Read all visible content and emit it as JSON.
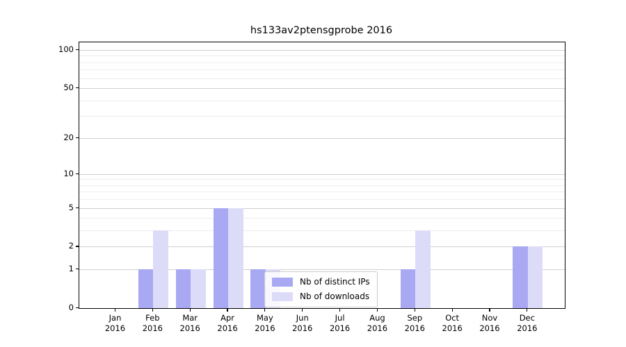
{
  "figure": {
    "background": "#ffffff",
    "spine_color": "#000000",
    "text_color": "#000000"
  },
  "chart_data": {
    "type": "bar",
    "title": "hs133av2ptensgprobe 2016",
    "xlabel": "",
    "ylabel": "",
    "x": {
      "months": [
        "Jan",
        "Feb",
        "Mar",
        "Apr",
        "May",
        "Jun",
        "Jul",
        "Aug",
        "Sep",
        "Oct",
        "Nov",
        "Dec"
      ],
      "year": "2016"
    },
    "series": [
      {
        "name": "Nb of distinct IPs",
        "color": "#a9a9f3",
        "values": [
          0,
          1,
          1,
          5,
          1,
          0,
          0,
          0,
          1,
          0,
          0,
          2
        ]
      },
      {
        "name": "Nb of downloads",
        "color": "#dcdcf8",
        "values": [
          0,
          3,
          1,
          5,
          1,
          0,
          0,
          0,
          3,
          0,
          0,
          2
        ]
      }
    ],
    "y_axis": {
      "scale": "log1p",
      "min": 0,
      "max": 100,
      "major_ticks": [
        0,
        1,
        2,
        5,
        10,
        20,
        50,
        100
      ],
      "minor_ticks": [
        3,
        4,
        6,
        7,
        8,
        9,
        30,
        40,
        60,
        70,
        80,
        90
      ]
    },
    "grid": {
      "major_color": "#d0d0d0",
      "minor_color": "#ededed"
    },
    "legend": {
      "position": "lower center"
    }
  }
}
